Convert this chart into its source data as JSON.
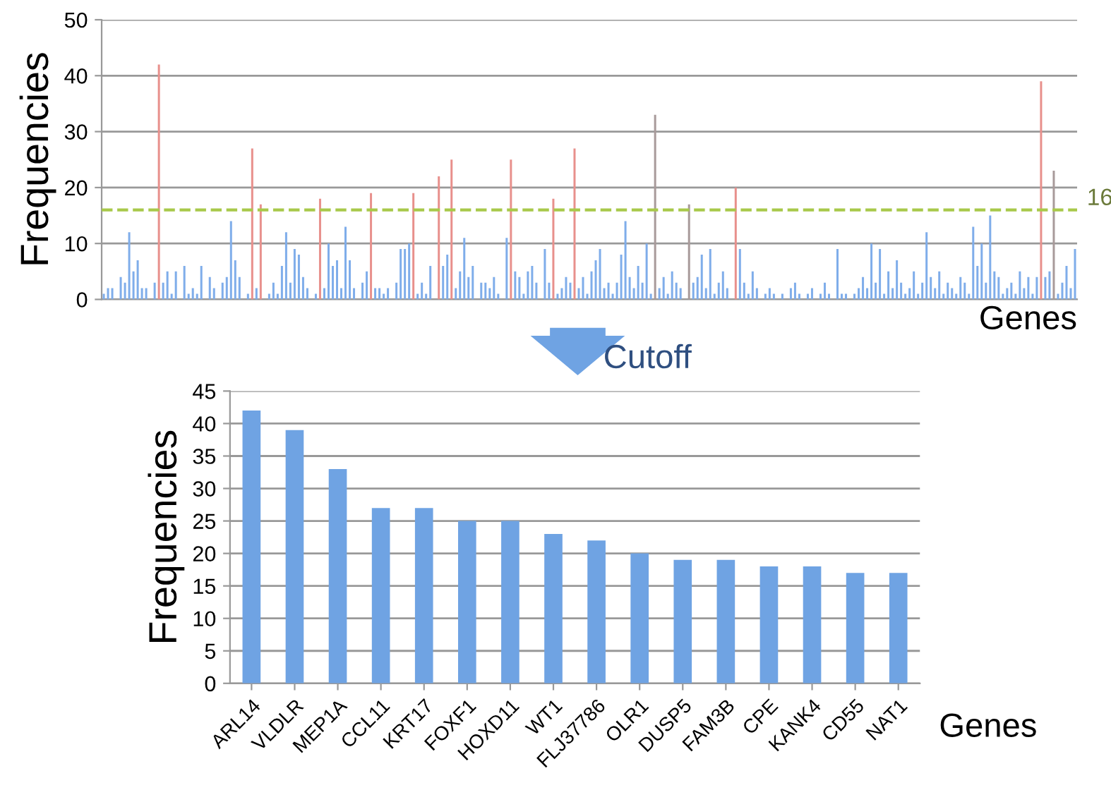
{
  "chart_data": [
    {
      "type": "bar",
      "ylabel": "Frequencies",
      "xlabel": "Genes",
      "tick_labels": "y",
      "grid": "y",
      "ylim": [
        0,
        50
      ],
      "yticks": [
        0,
        10,
        20,
        30,
        40,
        50
      ],
      "categories": [
        null,
        null,
        null,
        null,
        null,
        null,
        null,
        null,
        null,
        null,
        null,
        null,
        null,
        null,
        null,
        null,
        null,
        null,
        null,
        null,
        null,
        null,
        null,
        null,
        null,
        null,
        null,
        null,
        null,
        null,
        null,
        null,
        null,
        null,
        null,
        null,
        null,
        null,
        null,
        null,
        null,
        null,
        null,
        null,
        null,
        null,
        null,
        null,
        null,
        null,
        null,
        null,
        null,
        null,
        null,
        null,
        null,
        null,
        null,
        null,
        null,
        null,
        null,
        null,
        null,
        null,
        null,
        null,
        null,
        null,
        null,
        null,
        null,
        null,
        null,
        null,
        null,
        null,
        null,
        null,
        null,
        null,
        null,
        null,
        null,
        null,
        null,
        null,
        null,
        null,
        null,
        null,
        null,
        null,
        null,
        null,
        null,
        null,
        null,
        null,
        null,
        null,
        null,
        null,
        null,
        null,
        null,
        null,
        null,
        null,
        null,
        null,
        null,
        null,
        null,
        null,
        null,
        null,
        null,
        null,
        null,
        null,
        null,
        null,
        null,
        null,
        null,
        null,
        null,
        null,
        null,
        null,
        null,
        null,
        null,
        null,
        null,
        null,
        null,
        null,
        null,
        null,
        null,
        null,
        null,
        null,
        null,
        null,
        null,
        null,
        null,
        null,
        null,
        null,
        null,
        null,
        null,
        null,
        null,
        null,
        null,
        null,
        null,
        null,
        null,
        null,
        null,
        null,
        null,
        null,
        null,
        null,
        null,
        null,
        null,
        null,
        null,
        null,
        null,
        null,
        null,
        null,
        null,
        null,
        null,
        null,
        null,
        null,
        null,
        null,
        null,
        null,
        null,
        null,
        null,
        null,
        null,
        null,
        null,
        null,
        null,
        null,
        null,
        null,
        null,
        null,
        null,
        null,
        null,
        null,
        null,
        null,
        null,
        null,
        null,
        null,
        null,
        null,
        null,
        null,
        null,
        null,
        null,
        null,
        null,
        null,
        null,
        null,
        null,
        null
      ],
      "values": [
        1,
        2,
        2,
        0,
        4,
        3,
        12,
        5,
        7,
        2,
        2,
        0,
        3,
        42,
        3,
        5,
        1,
        5,
        0,
        6,
        1,
        2,
        1,
        6,
        0,
        4,
        2,
        0,
        3,
        4,
        14,
        7,
        4,
        0,
        1,
        27,
        2,
        17,
        0,
        1,
        3,
        1,
        6,
        12,
        3,
        9,
        8,
        4,
        2,
        0,
        1,
        18,
        2,
        10,
        6,
        7,
        2,
        13,
        7,
        2,
        0,
        3,
        5,
        19,
        2,
        2,
        1,
        2,
        0,
        3,
        9,
        9,
        10,
        19,
        1,
        3,
        1,
        6,
        0,
        22,
        6,
        8,
        25,
        2,
        5,
        11,
        4,
        6,
        0,
        3,
        3,
        2,
        4,
        1,
        0,
        11,
        25,
        5,
        4,
        1,
        5,
        6,
        3,
        0,
        9,
        3,
        18,
        1,
        2,
        4,
        3,
        27,
        2,
        4,
        1,
        5,
        7,
        9,
        2,
        3,
        1,
        3,
        8,
        14,
        4,
        2,
        6,
        3,
        10,
        1,
        33,
        2,
        4,
        1,
        5,
        3,
        2,
        0,
        17,
        3,
        4,
        8,
        2,
        9,
        1,
        3,
        5,
        2,
        0,
        20,
        9,
        3,
        1,
        5,
        2,
        0,
        1,
        2,
        1,
        0,
        1,
        0,
        2,
        3,
        1,
        0,
        1,
        2,
        0,
        1,
        3,
        1,
        0,
        9,
        1,
        1,
        0,
        1,
        2,
        4,
        2,
        10,
        3,
        9,
        1,
        5,
        2,
        7,
        3,
        1,
        2,
        5,
        1,
        3,
        12,
        4,
        2,
        5,
        1,
        3,
        2,
        1,
        4,
        3,
        1,
        13,
        6,
        10,
        3,
        15,
        5,
        4,
        1,
        2,
        3,
        1,
        5,
        2,
        4,
        1,
        4,
        39,
        4,
        5,
        23,
        1,
        3,
        6,
        2,
        9
      ],
      "colors": [
        "#7fadea",
        "#7fadea",
        "#7fadea",
        "#7fadea",
        "#7fadea",
        "#7fadea",
        "#7fadea",
        "#7fadea",
        "#7fadea",
        "#7fadea",
        "#7fadea",
        "#7fadea",
        "#7fadea",
        "#e8908c",
        "#7fadea",
        "#7fadea",
        "#7fadea",
        "#7fadea",
        "#7fadea",
        "#7fadea",
        "#7fadea",
        "#7fadea",
        "#7fadea",
        "#7fadea",
        "#7fadea",
        "#7fadea",
        "#7fadea",
        "#7fadea",
        "#7fadea",
        "#7fadea",
        "#7fadea",
        "#7fadea",
        "#7fadea",
        "#7fadea",
        "#7fadea",
        "#e8908c",
        "#7fadea",
        "#e8908c",
        "#7fadea",
        "#7fadea",
        "#7fadea",
        "#7fadea",
        "#7fadea",
        "#7fadea",
        "#7fadea",
        "#7fadea",
        "#7fadea",
        "#7fadea",
        "#7fadea",
        "#7fadea",
        "#7fadea",
        "#e8908c",
        "#7fadea",
        "#7fadea",
        "#7fadea",
        "#7fadea",
        "#7fadea",
        "#7fadea",
        "#7fadea",
        "#7fadea",
        "#7fadea",
        "#7fadea",
        "#7fadea",
        "#e8908c",
        "#7fadea",
        "#7fadea",
        "#7fadea",
        "#7fadea",
        "#7fadea",
        "#7fadea",
        "#7fadea",
        "#7fadea",
        "#7fadea",
        "#e8908c",
        "#7fadea",
        "#7fadea",
        "#7fadea",
        "#7fadea",
        "#7fadea",
        "#e8908c",
        "#7fadea",
        "#7fadea",
        "#e8908c",
        "#7fadea",
        "#7fadea",
        "#7fadea",
        "#7fadea",
        "#7fadea",
        "#7fadea",
        "#7fadea",
        "#7fadea",
        "#7fadea",
        "#7fadea",
        "#7fadea",
        "#7fadea",
        "#7fadea",
        "#e8908c",
        "#7fadea",
        "#7fadea",
        "#7fadea",
        "#7fadea",
        "#7fadea",
        "#7fadea",
        "#7fadea",
        "#7fadea",
        "#7fadea",
        "#e8908c",
        "#7fadea",
        "#7fadea",
        "#7fadea",
        "#7fadea",
        "#e8908c",
        "#7fadea",
        "#7fadea",
        "#7fadea",
        "#7fadea",
        "#7fadea",
        "#7fadea",
        "#7fadea",
        "#7fadea",
        "#7fadea",
        "#7fadea",
        "#7fadea",
        "#7fadea",
        "#7fadea",
        "#7fadea",
        "#7fadea",
        "#7fadea",
        "#7fadea",
        "#7fadea",
        "#a89a9a",
        "#7fadea",
        "#7fadea",
        "#7fadea",
        "#7fadea",
        "#7fadea",
        "#7fadea",
        "#7fadea",
        "#a89a9a",
        "#7fadea",
        "#7fadea",
        "#7fadea",
        "#7fadea",
        "#7fadea",
        "#7fadea",
        "#7fadea",
        "#7fadea",
        "#7fadea",
        "#7fadea",
        "#e8908c",
        "#7fadea",
        "#7fadea",
        "#7fadea",
        "#7fadea",
        "#7fadea",
        "#7fadea",
        "#7fadea",
        "#7fadea",
        "#7fadea",
        "#7fadea",
        "#7fadea",
        "#7fadea",
        "#7fadea",
        "#7fadea",
        "#7fadea",
        "#7fadea",
        "#7fadea",
        "#7fadea",
        "#7fadea",
        "#7fadea",
        "#7fadea",
        "#7fadea",
        "#7fadea",
        "#7fadea",
        "#7fadea",
        "#7fadea",
        "#7fadea",
        "#7fadea",
        "#7fadea",
        "#7fadea",
        "#7fadea",
        "#7fadea",
        "#7fadea",
        "#7fadea",
        "#7fadea",
        "#7fadea",
        "#7fadea",
        "#7fadea",
        "#7fadea",
        "#7fadea",
        "#7fadea",
        "#7fadea",
        "#7fadea",
        "#7fadea",
        "#7fadea",
        "#7fadea",
        "#7fadea",
        "#7fadea",
        "#7fadea",
        "#7fadea",
        "#7fadea",
        "#7fadea",
        "#7fadea",
        "#7fadea",
        "#7fadea",
        "#7fadea",
        "#7fadea",
        "#7fadea",
        "#7fadea",
        "#7fadea",
        "#7fadea",
        "#7fadea",
        "#7fadea",
        "#7fadea",
        "#7fadea",
        "#7fadea",
        "#7fadea",
        "#7fadea",
        "#7fadea",
        "#7fadea",
        "#7fadea",
        "#e8908c",
        "#7fadea",
        "#7fadea",
        "#a89a9a",
        "#7fadea",
        "#7fadea",
        "#7fadea",
        "#7fadea",
        "#7fadea"
      ],
      "ref_lines": [
        {
          "axis": "y",
          "value": 16,
          "label": "16",
          "color": "#a8c94a",
          "line_style": "dashed"
        }
      ]
    },
    {
      "type": "bar",
      "ylabel": "Frequencies",
      "xlabel": "Genes",
      "grid": "y",
      "ylim": [
        0,
        45
      ],
      "yticks": [
        0,
        5,
        10,
        15,
        20,
        25,
        30,
        35,
        40,
        45
      ],
      "categories": [
        "ARL14",
        "VLDLR",
        "MEP1A",
        "CCL11",
        "KRT17",
        "FOXF1",
        "HOXD11",
        "WT1",
        "FLJ37786",
        "OLR1",
        "DUSP5",
        "FAM3B",
        "CPE",
        "KANK4",
        "CD55",
        "NAT1"
      ],
      "values": [
        42,
        39,
        33,
        27,
        27,
        25,
        25,
        23,
        22,
        20,
        19,
        19,
        18,
        18,
        17,
        17
      ],
      "color": "#6fa3e3",
      "annotations": [
        "Cutoff"
      ]
    }
  ]
}
